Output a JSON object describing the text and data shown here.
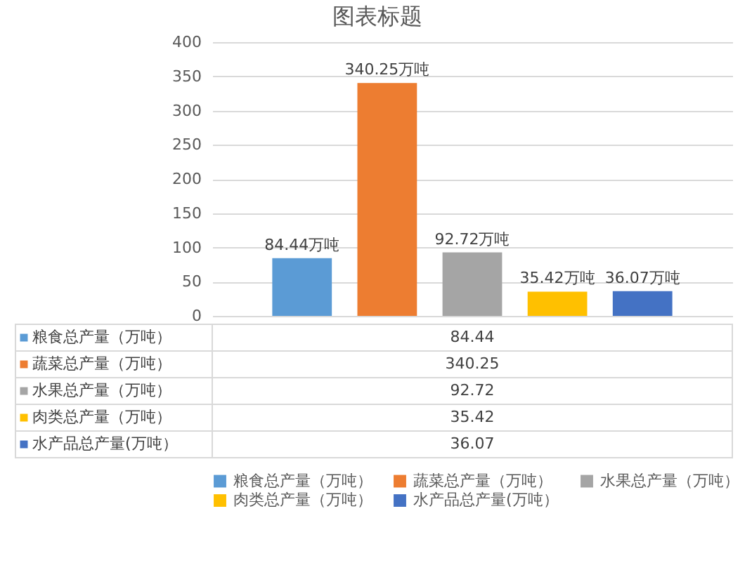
{
  "chart_data": {
    "type": "bar",
    "title": "图表标题",
    "categories": [
      null
    ],
    "series": [
      {
        "name": "粮食总产量（万吨）",
        "color": "#5b9bd5",
        "values": [
          84.44
        ],
        "value_labels": [
          "84.44万吨"
        ]
      },
      {
        "name": "蔬菜总产量（万吨）",
        "color": "#ed7d31",
        "values": [
          340.25
        ],
        "value_labels": [
          "340.25万吨"
        ]
      },
      {
        "name": "水果总产量（万吨）",
        "color": "#a5a5a5",
        "values": [
          92.72
        ],
        "value_labels": [
          "92.72万吨"
        ]
      },
      {
        "name": "肉类总产量（万吨）",
        "color": "#ffc000",
        "values": [
          35.42
        ],
        "value_labels": [
          "35.42万吨"
        ]
      },
      {
        "name": "水产品总产量(万吨）",
        "color": "#4472c4",
        "values": [
          36.07
        ],
        "value_labels": [
          "36.07万吨"
        ]
      }
    ],
    "annotations": [
      "84.44",
      "340.25",
      "92.72",
      "35.42",
      "36.07"
    ],
    "ylim": [
      0,
      400
    ],
    "yticks": [
      0,
      50,
      100,
      150,
      200,
      250,
      300,
      350,
      400
    ],
    "grid": "y",
    "legend": "bottom"
  }
}
